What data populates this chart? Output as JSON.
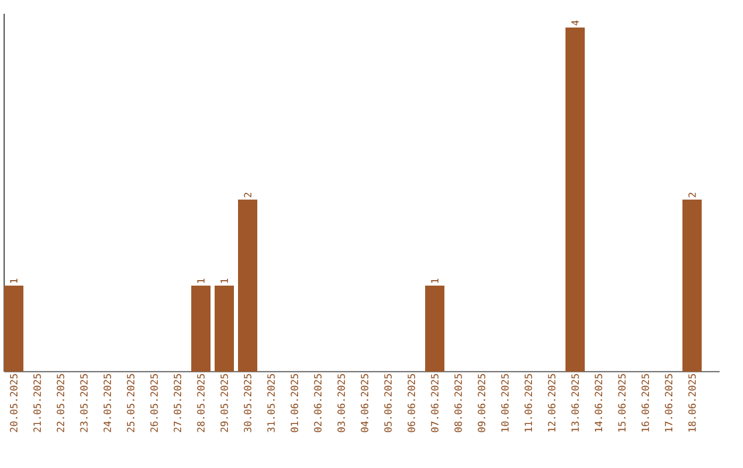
{
  "chart_data": {
    "type": "bar",
    "categories": [
      "20.05.2025",
      "21.05.2025",
      "22.05.2025",
      "23.05.2025",
      "24.05.2025",
      "25.05.2025",
      "26.05.2025",
      "27.05.2025",
      "28.05.2025",
      "29.05.2025",
      "30.05.2025",
      "31.05.2025",
      "01.06.2025",
      "02.06.2025",
      "03.06.2025",
      "04.06.2025",
      "05.06.2025",
      "06.06.2025",
      "07.06.2025",
      "08.06.2025",
      "09.06.2025",
      "10.06.2025",
      "11.06.2025",
      "12.06.2025",
      "13.06.2025",
      "14.06.2025",
      "15.06.2025",
      "16.06.2025",
      "17.06.2025",
      "18.06.2025"
    ],
    "values": [
      1,
      0,
      0,
      0,
      0,
      0,
      0,
      0,
      1,
      1,
      2,
      0,
      0,
      0,
      0,
      0,
      0,
      0,
      1,
      0,
      0,
      0,
      0,
      0,
      4,
      0,
      0,
      0,
      0,
      2
    ],
    "value_labels": [
      "1",
      null,
      null,
      null,
      null,
      null,
      null,
      null,
      "1",
      "1",
      "2",
      null,
      null,
      null,
      null,
      null,
      null,
      null,
      "1",
      null,
      null,
      null,
      null,
      null,
      "4",
      null,
      null,
      null,
      null,
      "2"
    ],
    "color": "#a0582a",
    "ylim": [
      0,
      4.16
    ]
  }
}
